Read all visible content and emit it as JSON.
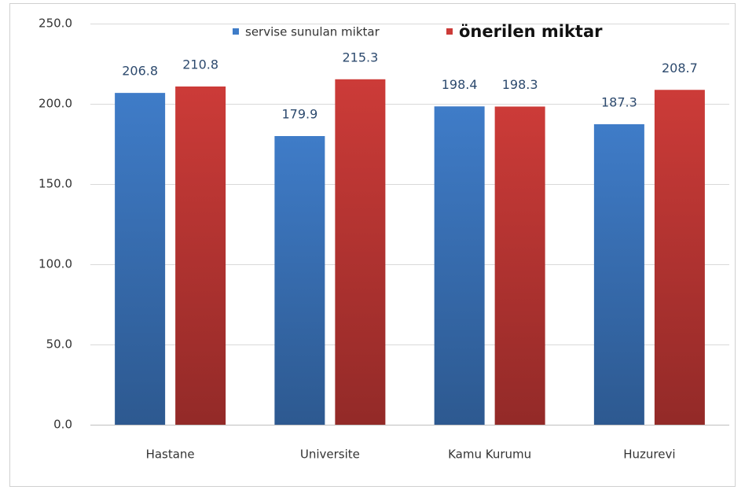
{
  "chart_data": {
    "type": "bar",
    "categories": [
      "Hastane",
      "Universite",
      "Kamu Kurumu",
      "Huzurevi"
    ],
    "series": [
      {
        "name": "servise sunulan miktar",
        "color": "#3f7cc8",
        "values": [
          206.8,
          179.9,
          198.4,
          187.3
        ]
      },
      {
        "name": "önerilen miktar",
        "color": "#cc3b38",
        "values": [
          210.8,
          215.3,
          198.3,
          208.7
        ]
      }
    ],
    "ylim": [
      0,
      250
    ],
    "yticks": [
      {
        "value": 0,
        "label": "0.0"
      },
      {
        "value": 50,
        "label": "50.0"
      },
      {
        "value": 100,
        "label": "100.0"
      },
      {
        "value": 150,
        "label": "150.0"
      },
      {
        "value": 200,
        "label": "200.0"
      },
      {
        "value": 250,
        "label": "250.0"
      }
    ],
    "grid": true,
    "legend": "top"
  }
}
